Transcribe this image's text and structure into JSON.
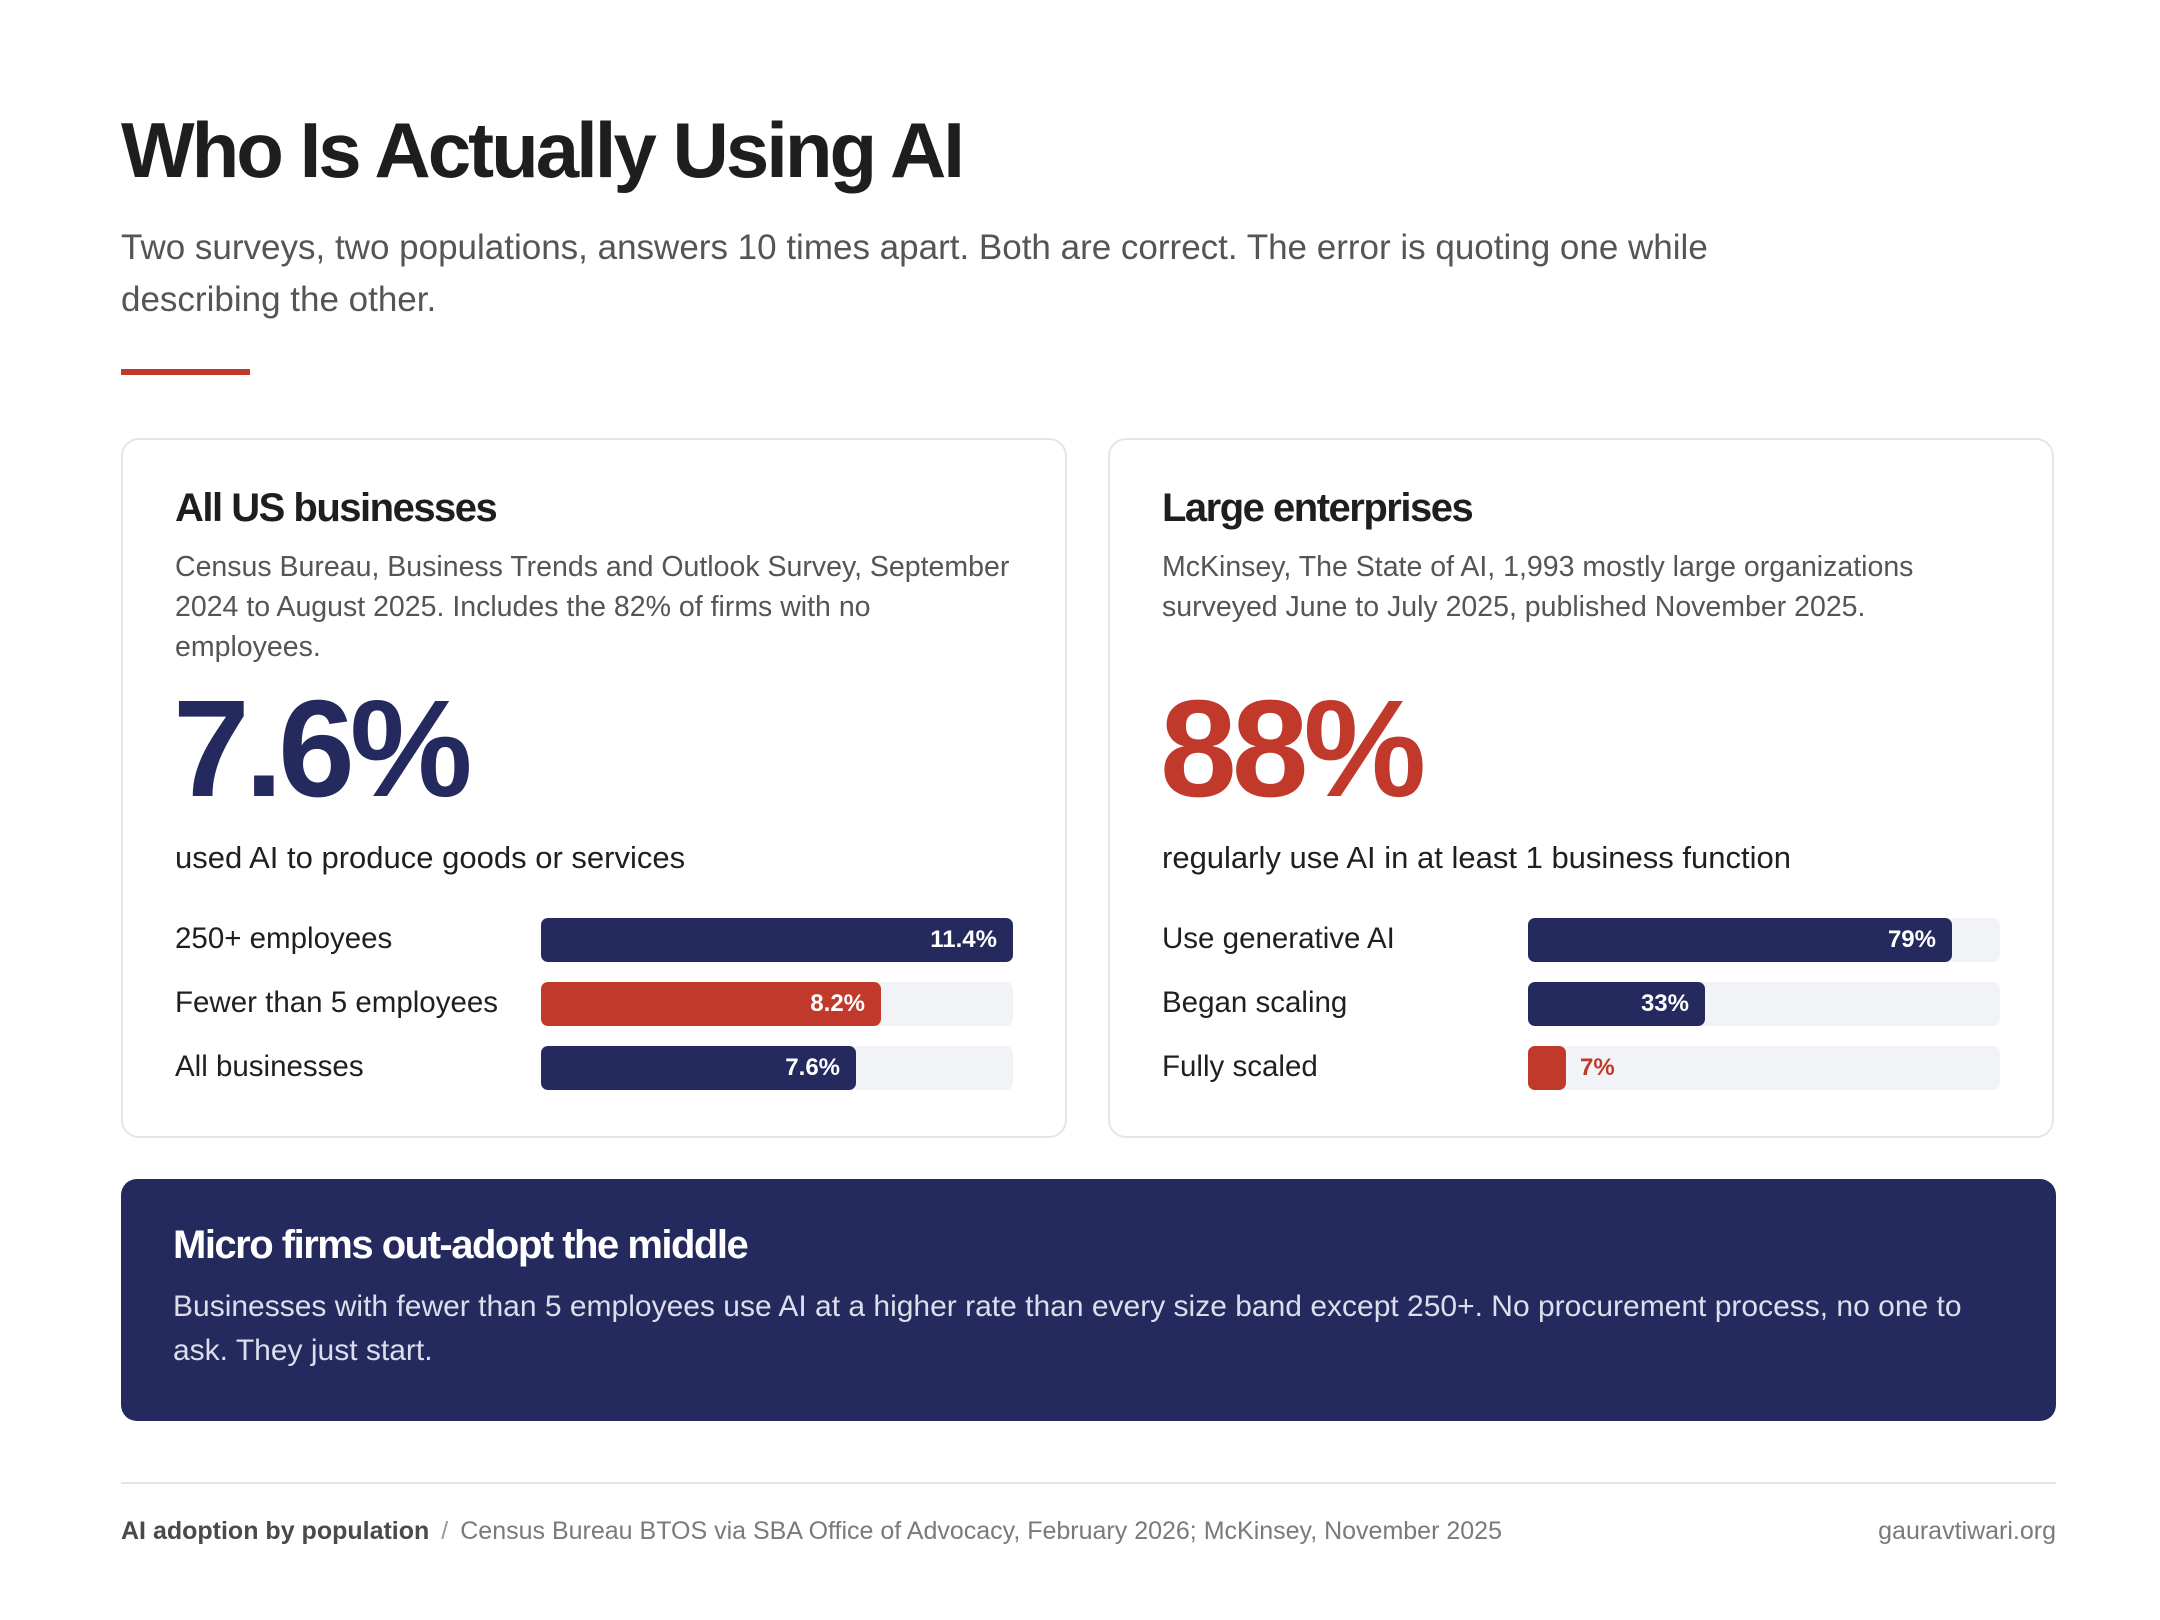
{
  "header": {
    "title": "Who Is Actually Using AI",
    "subtitle": "Two surveys, two populations, answers 10 times apart. Both are correct. The error is quoting one while describing the other."
  },
  "colors": {
    "navy": "#252a5e",
    "red": "#c0392b",
    "track": "#f2f3f6"
  },
  "cards": {
    "left": {
      "title": "All US businesses",
      "description": "Census Bureau, Business Trends and Outlook Survey, September 2024 to August 2025. Includes the 82% of firms with no employees.",
      "stat": "7.6%",
      "stat_label": "used AI to produce goods or services"
    },
    "right": {
      "title": "Large enterprises",
      "description": "McKinsey, The State of AI, 1,993 mostly large organizations surveyed June to July 2025, published November 2025.",
      "stat": "88%",
      "stat_label": "regularly use AI in at least 1 business function"
    }
  },
  "chart_data": [
    {
      "type": "bar",
      "orientation": "horizontal",
      "categories": [
        "250+ employees",
        "Fewer than 5 employees",
        "All businesses"
      ],
      "values": [
        11.4,
        8.2,
        7.6
      ],
      "value_labels": [
        "11.4%",
        "8.2%",
        "7.6%"
      ],
      "colors": [
        "navy",
        "red",
        "navy"
      ],
      "xlim": [
        0,
        11.4
      ]
    },
    {
      "type": "bar",
      "orientation": "horizontal",
      "categories": [
        "Use generative AI",
        "Began scaling",
        "Fully scaled"
      ],
      "values": [
        79,
        33,
        7
      ],
      "value_labels": [
        "79%",
        "33%",
        "7%"
      ],
      "colors": [
        "navy",
        "navy",
        "red"
      ],
      "xlim": [
        0,
        88
      ]
    }
  ],
  "callout": {
    "title": "Micro firms out-adopt the middle",
    "body": "Businesses with fewer than 5 employees use AI at a higher rate than every size band except 250+. No procurement process, no one to ask. They just start."
  },
  "footer": {
    "label": "AI adoption by population",
    "separator": "/",
    "sources": "Census Bureau BTOS via SBA Office of Advocacy, February 2026; McKinsey, November 2025",
    "site": "gauravtiwari.org"
  }
}
